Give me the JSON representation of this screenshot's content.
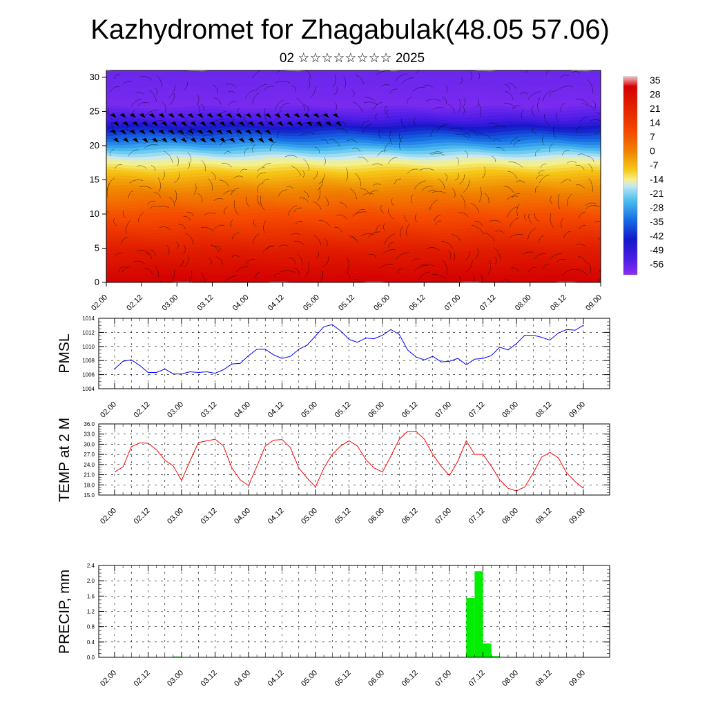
{
  "title": "Kazhydromet for Zhagabulak(48.05 57.06)",
  "subtitle": "02 ☆☆☆☆☆☆☆☆ 2025",
  "x_ticks": [
    "02.00",
    "02.12",
    "03.00",
    "03.12",
    "04.00",
    "04.12",
    "05.00",
    "05.12",
    "06.00",
    "06.12",
    "07.00",
    "07.12",
    "08.00",
    "08.12",
    "09.00"
  ],
  "chart_data": [
    {
      "type": "heatmap",
      "y_ticks": [
        "0",
        "5",
        "10",
        "15",
        "20",
        "25",
        "30"
      ],
      "ylim": [
        0,
        31
      ],
      "colorbar": {
        "labels": [
          "35",
          "28",
          "21",
          "14",
          "7",
          "0",
          "-7",
          "-14",
          "-21",
          "-28",
          "-35",
          "-42",
          "-49",
          "-56"
        ],
        "range": [
          -60,
          38
        ]
      },
      "vertical_profile_degC": [
        [
          0,
          30
        ],
        [
          5,
          24
        ],
        [
          10,
          14
        ],
        [
          15,
          -2
        ],
        [
          18,
          -14
        ],
        [
          20,
          -28
        ],
        [
          22,
          -40
        ],
        [
          24,
          -52
        ],
        [
          26,
          -58
        ],
        [
          31,
          -56
        ]
      ],
      "wind": "streamlines and wind barbs"
    },
    {
      "type": "line",
      "ylabel": "PMSL",
      "ylim": [
        1004,
        1014
      ],
      "y_ticks": [
        "1014",
        "1012",
        "1010",
        "1008",
        "1006",
        "1004"
      ],
      "color": "#0000ff",
      "x": [
        0,
        1,
        2,
        3,
        4,
        5,
        6,
        7,
        8,
        9,
        10,
        11,
        12,
        13,
        14,
        15,
        16,
        17,
        18,
        19,
        20,
        21,
        22,
        23,
        24,
        25,
        26,
        27,
        28,
        29,
        30,
        31,
        32,
        33,
        34,
        35,
        36,
        37,
        38,
        39,
        40,
        41,
        42,
        43,
        44,
        45,
        46,
        47,
        48,
        49,
        50,
        51,
        52,
        53,
        54,
        55,
        56
      ],
      "values": [
        1006.8,
        1007.9,
        1008.1,
        1007.3,
        1006.3,
        1006.3,
        1006.8,
        1006.1,
        1006.1,
        1006.4,
        1006.3,
        1006.4,
        1006.2,
        1006.7,
        1007.5,
        1007.6,
        1008.7,
        1009.6,
        1009.6,
        1008.8,
        1008.3,
        1008.6,
        1009.6,
        1010.2,
        1011.5,
        1012.8,
        1013.1,
        1012.2,
        1011.0,
        1010.6,
        1011.2,
        1011.1,
        1011.6,
        1012.4,
        1011.7,
        1009.5,
        1008.5,
        1008.1,
        1008.6,
        1007.8,
        1007.9,
        1008.3,
        1007.4,
        1008.2,
        1008.3,
        1008.7,
        1009.9,
        1009.5,
        1010.4,
        1011.6,
        1011.6,
        1011.3,
        1010.9,
        1011.9,
        1012.4,
        1012.3,
        1013.0
      ]
    },
    {
      "type": "line",
      "ylabel": "TEMP at 2 M",
      "ylim": [
        15,
        36
      ],
      "y_ticks": [
        "36.0",
        "33.0",
        "30.0",
        "27.0",
        "24.0",
        "21.0",
        "18.0",
        "15.0"
      ],
      "color": "#ff0000",
      "x": [
        0,
        1,
        2,
        3,
        4,
        5,
        6,
        7,
        8,
        9,
        10,
        11,
        12,
        13,
        14,
        15,
        16,
        17,
        18,
        19,
        20,
        21,
        22,
        23,
        24,
        25,
        26,
        27,
        28,
        29,
        30,
        31,
        32,
        33,
        34,
        35,
        36,
        37,
        38,
        39,
        40,
        41,
        42,
        43,
        44,
        45,
        46,
        47,
        48,
        49,
        50,
        51,
        52,
        53,
        54,
        55,
        56
      ],
      "values": [
        21.8,
        23.3,
        29.3,
        30.4,
        30.3,
        28.4,
        25.3,
        23.6,
        19.3,
        25.0,
        30.5,
        31.0,
        31.5,
        29.5,
        23.0,
        19.5,
        17.8,
        23.5,
        29.5,
        31.2,
        31.4,
        29.0,
        23.0,
        20.0,
        17.4,
        23.0,
        27.0,
        29.5,
        31.0,
        29.5,
        25.5,
        23.0,
        21.8,
        26.5,
        31.5,
        33.8,
        33.8,
        31.5,
        27.0,
        23.5,
        20.8,
        25.0,
        31.0,
        27.0,
        27.0,
        23.5,
        19.5,
        17.0,
        16.2,
        17.4,
        21.5,
        26.2,
        27.6,
        26.0,
        21.5,
        19.0,
        17.0
      ]
    },
    {
      "type": "bar",
      "ylabel": "PRECIP, mm",
      "ylim": [
        0,
        2.4
      ],
      "y_ticks": [
        "2.4",
        "2.0",
        "1.6",
        "1.2",
        "0.8",
        "0.4",
        "0.0"
      ],
      "color": "#00ee00",
      "x_step_start": [
        7,
        42,
        43,
        44,
        45
      ],
      "values": [
        0.02,
        1.55,
        2.25,
        0.36,
        0.03
      ]
    }
  ]
}
